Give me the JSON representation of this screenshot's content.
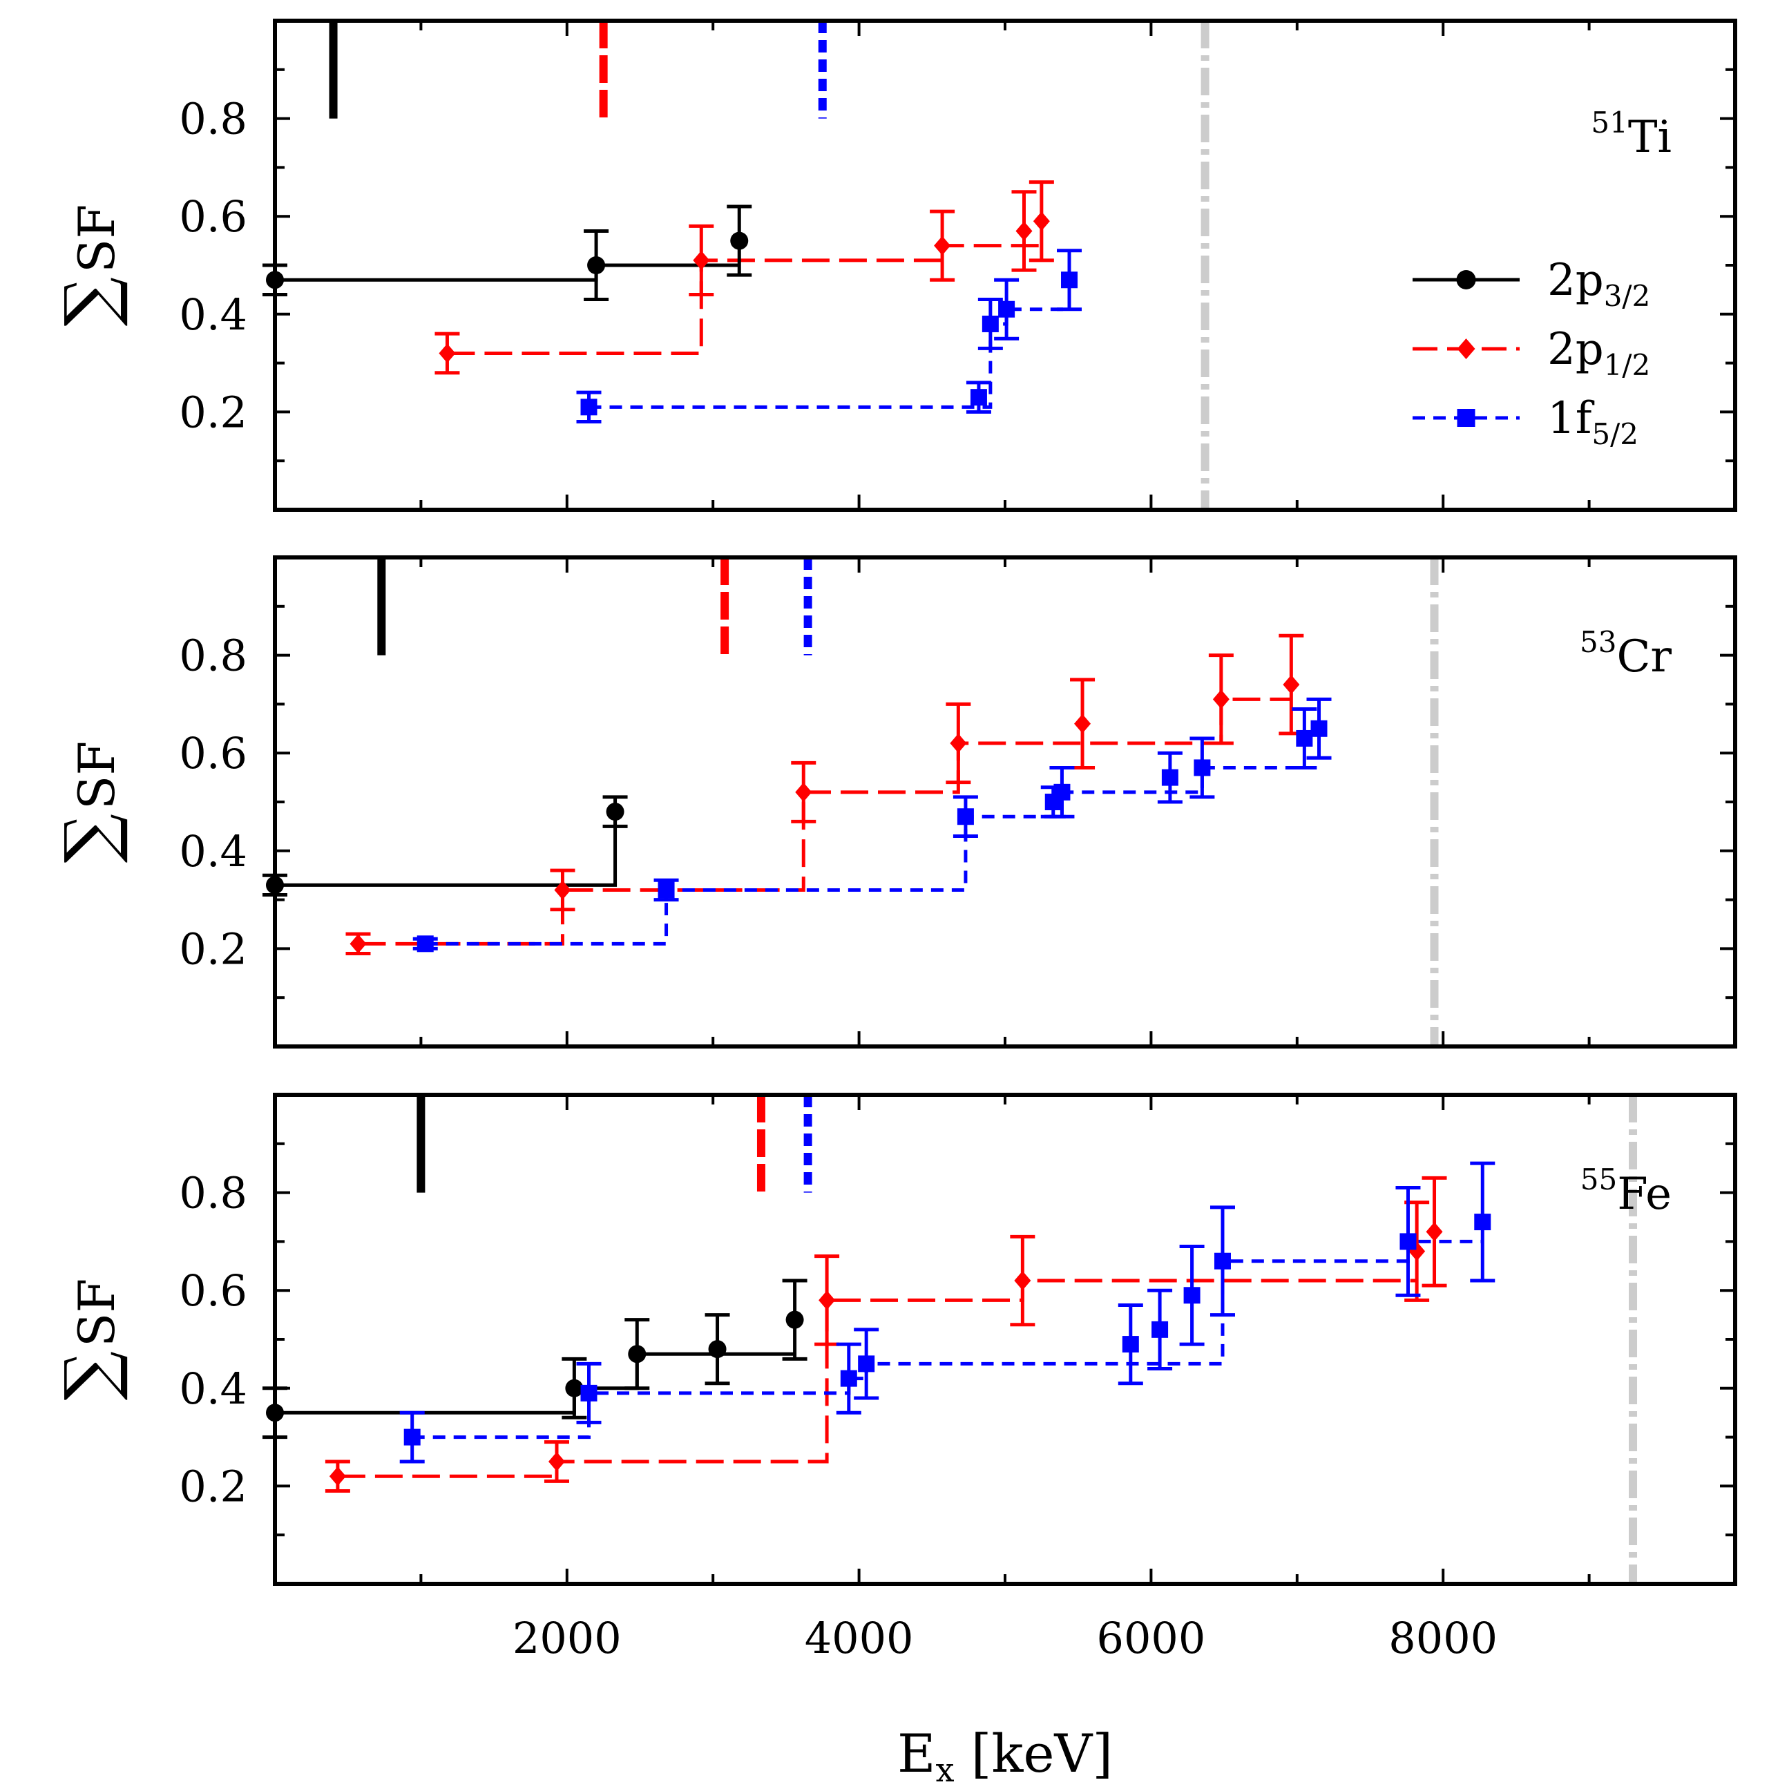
{
  "chart_data": {
    "type": "scatter",
    "xlabel_main": "E",
    "xlabel_sub": "x",
    "xlabel_unit": " [keV]",
    "ylabel_symbol": "∑",
    "ylabel_text": "SF",
    "xlim": [
      0,
      10000
    ],
    "ylim": [
      0,
      1.0
    ],
    "x_ticks": [
      2000,
      4000,
      6000,
      8000
    ],
    "x_tick_labels": [
      "2000",
      "4000",
      "6000",
      "8000"
    ],
    "y_ticks": [
      0.2,
      0.4,
      0.6,
      0.8
    ],
    "y_tick_labels": [
      "0.2",
      "0.4",
      "0.6",
      "0.8"
    ],
    "legend": [
      {
        "key": "p32",
        "main": "2p",
        "sub": "3/2",
        "color": "#000000",
        "marker": "circle"
      },
      {
        "key": "p12",
        "main": "2p",
        "sub": "1/2",
        "color": "#ff0000",
        "marker": "diamond"
      },
      {
        "key": "f52",
        "main": "1f",
        "sub": "5/2",
        "color": "#0000ff",
        "marker": "square"
      }
    ],
    "colors": {
      "p32": "#000000",
      "p12": "#ff0000",
      "f52": "#0000ff",
      "threshold": "#cccccc"
    },
    "panels": [
      {
        "nucleus_mass": "51",
        "nucleus_symbol": "Ti",
        "centroids": {
          "p32": 400,
          "p12": 2250,
          "f52": 3750
        },
        "threshold": 6370,
        "points": {
          "p32": [
            {
              "x": 0,
              "y": 0.47,
              "err": 0.03
            },
            {
              "x": 2200,
              "y": 0.5,
              "err": 0.07
            },
            {
              "x": 3180,
              "y": 0.55,
              "err": 0.07
            }
          ],
          "p12": [
            {
              "x": 1180,
              "y": 0.32,
              "err": 0.04
            },
            {
              "x": 2920,
              "y": 0.51,
              "err": 0.07
            },
            {
              "x": 4570,
              "y": 0.54,
              "err": 0.07
            },
            {
              "x": 5130,
              "y": 0.57,
              "err": 0.08
            },
            {
              "x": 5250,
              "y": 0.59,
              "err": 0.08
            }
          ],
          "f52": [
            {
              "x": 2150,
              "y": 0.21,
              "err": 0.03
            },
            {
              "x": 4820,
              "y": 0.23,
              "err": 0.03
            },
            {
              "x": 4900,
              "y": 0.38,
              "err": 0.05
            },
            {
              "x": 5010,
              "y": 0.41,
              "err": 0.06
            },
            {
              "x": 5440,
              "y": 0.47,
              "err": 0.06
            }
          ]
        },
        "steps": {
          "p32": [
            [
              0,
              0.47
            ],
            [
              2200,
              0.47
            ],
            [
              2200,
              0.5
            ],
            [
              3180,
              0.5
            ]
          ],
          "p12": [
            [
              1180,
              0.32
            ],
            [
              2920,
              0.32
            ],
            [
              2920,
              0.51
            ],
            [
              4570,
              0.51
            ],
            [
              4570,
              0.54
            ],
            [
              5250,
              0.54
            ]
          ],
          "f52": [
            [
              2150,
              0.21
            ],
            [
              4900,
              0.21
            ],
            [
              4900,
              0.38
            ],
            [
              5010,
              0.38
            ],
            [
              5010,
              0.41
            ],
            [
              5440,
              0.41
            ]
          ]
        }
      },
      {
        "nucleus_mass": "53",
        "nucleus_symbol": "Cr",
        "centroids": {
          "p32": 730,
          "p12": 3080,
          "f52": 3650
        },
        "threshold": 7940,
        "points": {
          "p32": [
            {
              "x": 0,
              "y": 0.33,
              "err": 0.02
            },
            {
              "x": 2330,
              "y": 0.48,
              "err": 0.03
            }
          ],
          "p12": [
            {
              "x": 570,
              "y": 0.21,
              "err": 0.02
            },
            {
              "x": 1970,
              "y": 0.32,
              "err": 0.04
            },
            {
              "x": 3620,
              "y": 0.52,
              "err": 0.06
            },
            {
              "x": 4680,
              "y": 0.62,
              "err": 0.08
            },
            {
              "x": 5530,
              "y": 0.66,
              "err": 0.09
            },
            {
              "x": 6480,
              "y": 0.71,
              "err": 0.09
            },
            {
              "x": 6960,
              "y": 0.74,
              "err": 0.1
            }
          ],
          "f52": [
            {
              "x": 1030,
              "y": 0.21,
              "err": 0.01
            },
            {
              "x": 2680,
              "y": 0.32,
              "err": 0.02
            },
            {
              "x": 4730,
              "y": 0.47,
              "err": 0.04
            },
            {
              "x": 5330,
              "y": 0.5,
              "err": 0.03
            },
            {
              "x": 5390,
              "y": 0.52,
              "err": 0.05
            },
            {
              "x": 6130,
              "y": 0.55,
              "err": 0.05
            },
            {
              "x": 6350,
              "y": 0.57,
              "err": 0.06
            },
            {
              "x": 7050,
              "y": 0.63,
              "err": 0.06
            },
            {
              "x": 7150,
              "y": 0.65,
              "err": 0.06
            }
          ]
        },
        "steps": {
          "p32": [
            [
              0,
              0.33
            ],
            [
              2330,
              0.33
            ],
            [
              2330,
              0.48
            ]
          ],
          "p12": [
            [
              570,
              0.21
            ],
            [
              1970,
              0.21
            ],
            [
              1970,
              0.32
            ],
            [
              3620,
              0.32
            ],
            [
              3620,
              0.52
            ],
            [
              4680,
              0.52
            ],
            [
              4680,
              0.62
            ],
            [
              6480,
              0.62
            ],
            [
              6480,
              0.66
            ],
            [
              6480,
              0.71
            ],
            [
              6960,
              0.71
            ]
          ],
          "f52": [
            [
              1030,
              0.21
            ],
            [
              2680,
              0.21
            ],
            [
              2680,
              0.32
            ],
            [
              4730,
              0.32
            ],
            [
              4730,
              0.47
            ],
            [
              5390,
              0.47
            ],
            [
              5390,
              0.52
            ],
            [
              6350,
              0.52
            ],
            [
              6350,
              0.57
            ],
            [
              7050,
              0.57
            ]
          ]
        }
      },
      {
        "nucleus_mass": "55",
        "nucleus_symbol": "Fe",
        "centroids": {
          "p32": 1000,
          "p12": 3330,
          "f52": 3650
        },
        "threshold": 9300,
        "points": {
          "p32": [
            {
              "x": 0,
              "y": 0.35,
              "err": 0.05
            },
            {
              "x": 2050,
              "y": 0.4,
              "err": 0.06
            },
            {
              "x": 2480,
              "y": 0.47,
              "err": 0.07
            },
            {
              "x": 3030,
              "y": 0.48,
              "err": 0.07
            },
            {
              "x": 3560,
              "y": 0.54,
              "err": 0.08
            }
          ],
          "p12": [
            {
              "x": 430,
              "y": 0.22,
              "err": 0.03
            },
            {
              "x": 1930,
              "y": 0.25,
              "err": 0.04
            },
            {
              "x": 3780,
              "y": 0.58,
              "err": 0.09
            },
            {
              "x": 5120,
              "y": 0.62,
              "err": 0.09
            },
            {
              "x": 7820,
              "y": 0.68,
              "err": 0.1
            },
            {
              "x": 7940,
              "y": 0.72,
              "err": 0.11
            }
          ],
          "f52": [
            {
              "x": 940,
              "y": 0.3,
              "err": 0.05
            },
            {
              "x": 2150,
              "y": 0.39,
              "err": 0.06
            },
            {
              "x": 3930,
              "y": 0.42,
              "err": 0.07
            },
            {
              "x": 4050,
              "y": 0.45,
              "err": 0.07
            },
            {
              "x": 5860,
              "y": 0.49,
              "err": 0.08
            },
            {
              "x": 6060,
              "y": 0.52,
              "err": 0.08
            },
            {
              "x": 6280,
              "y": 0.59,
              "err": 0.1
            },
            {
              "x": 6490,
              "y": 0.66,
              "err": 0.11
            },
            {
              "x": 7760,
              "y": 0.7,
              "err": 0.11
            },
            {
              "x": 8270,
              "y": 0.74,
              "err": 0.12
            }
          ]
        },
        "steps": {
          "p32": [
            [
              0,
              0.35
            ],
            [
              2050,
              0.35
            ],
            [
              2050,
              0.4
            ],
            [
              2480,
              0.4
            ],
            [
              2480,
              0.47
            ],
            [
              3560,
              0.47
            ]
          ],
          "p12": [
            [
              430,
              0.22
            ],
            [
              1930,
              0.22
            ],
            [
              1930,
              0.25
            ],
            [
              3780,
              0.25
            ],
            [
              3780,
              0.58
            ],
            [
              5120,
              0.58
            ],
            [
              5120,
              0.62
            ],
            [
              7820,
              0.62
            ]
          ],
          "f52": [
            [
              940,
              0.3
            ],
            [
              2150,
              0.3
            ],
            [
              2150,
              0.39
            ],
            [
              3930,
              0.39
            ],
            [
              3930,
              0.42
            ],
            [
              4050,
              0.42
            ],
            [
              4050,
              0.45
            ],
            [
              6490,
              0.45
            ],
            [
              6490,
              0.66
            ],
            [
              7760,
              0.66
            ],
            [
              7760,
              0.7
            ],
            [
              8270,
              0.7
            ]
          ]
        }
      }
    ]
  }
}
